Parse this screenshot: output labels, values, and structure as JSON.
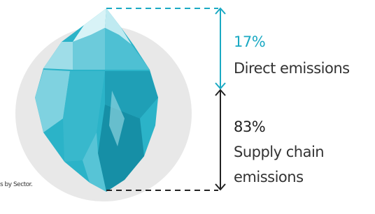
{
  "items": [
    {
      "percent": "17%",
      "lines": [
        "Direct emissions"
      ]
    },
    {
      "percent": "83%",
      "lines": [
        "Supply chain",
        "emissions"
      ]
    }
  ],
  "footnote": "s by Sector."
}
